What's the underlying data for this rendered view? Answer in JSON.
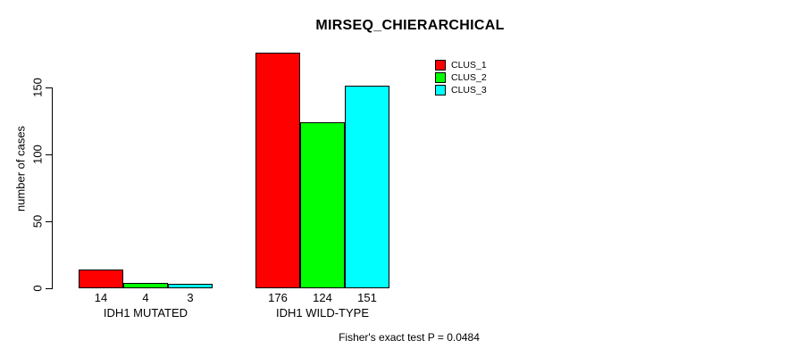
{
  "chart_data": {
    "type": "bar",
    "title": "MIRSEQ_CHIERARCHICAL",
    "ylabel": "number of cases",
    "xlabel": "",
    "categories": [
      "IDH1 MUTATED",
      "IDH1 WILD-TYPE"
    ],
    "series": [
      {
        "name": "CLUS_1",
        "color": "#ff0000",
        "values": [
          14,
          176
        ]
      },
      {
        "name": "CLUS_2",
        "color": "#00ff00",
        "values": [
          4,
          124
        ]
      },
      {
        "name": "CLUS_3",
        "color": "#00ffff",
        "values": [
          3,
          151
        ]
      }
    ],
    "yticks": [
      0,
      50,
      100,
      150
    ],
    "ylim": [
      0,
      176
    ],
    "grid": false,
    "legend_position": "top-right",
    "bar_value_labels": true,
    "annotation": "Fisher's exact test P = 0.0484"
  }
}
